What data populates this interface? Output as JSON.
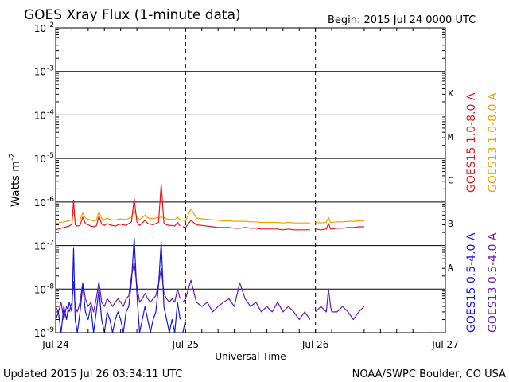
{
  "chart_data": {
    "type": "line",
    "title": "GOES Xray Flux (1-minute data)",
    "begin_label": "Begin:  2015 Jul 24 0000 UTC",
    "ylabel": "Watts m",
    "ylabel_sup": "-2",
    "xlabel": "Universal Time",
    "y_scale": "log",
    "ylim": [
      1e-09,
      0.01
    ],
    "y_ticks": [
      {
        "value": 0.01,
        "base": "10",
        "exp": "-2"
      },
      {
        "value": 0.001,
        "base": "10",
        "exp": "-3"
      },
      {
        "value": 0.0001,
        "base": "10",
        "exp": "-4"
      },
      {
        "value": 1e-05,
        "base": "10",
        "exp": "-5"
      },
      {
        "value": 1e-06,
        "base": "10",
        "exp": "-6"
      },
      {
        "value": 1e-07,
        "base": "10",
        "exp": "-7"
      },
      {
        "value": 1e-08,
        "base": "10",
        "exp": "-8"
      },
      {
        "value": 1e-09,
        "base": "10",
        "exp": "-9"
      }
    ],
    "xlim_hours": [
      0,
      72
    ],
    "x_ticks": [
      {
        "hour": 0,
        "label": "Jul 24"
      },
      {
        "hour": 24,
        "label": "Jul 25"
      },
      {
        "hour": 48,
        "label": "Jul 26"
      },
      {
        "hour": 72,
        "label": "Jul 27"
      }
    ],
    "flare_classes": [
      {
        "label": "X",
        "value": 0.000316
      },
      {
        "label": "M",
        "value": 3.16e-05
      },
      {
        "label": "C",
        "value": 3.16e-06
      },
      {
        "label": "B",
        "value": 3.16e-07
      },
      {
        "label": "A",
        "value": 3.16e-08
      }
    ],
    "series": [
      {
        "name": "GOES15 1.0-8.0 A",
        "color": "#e8181b",
        "x_hours": [
          0,
          0.5,
          1,
          1.5,
          2,
          2.5,
          3,
          3.3,
          3.6,
          4,
          4.5,
          5,
          5.5,
          6,
          6.5,
          7,
          7.5,
          8,
          8.5,
          9,
          9.5,
          10,
          10.5,
          11,
          11.5,
          12,
          12.5,
          13,
          13.5,
          14,
          14.5,
          15,
          15.5,
          16,
          16.5,
          17,
          17.5,
          18,
          18.5,
          19,
          19.5,
          20,
          20.5,
          21,
          21.5,
          22,
          22.5,
          23,
          23.5,
          24,
          25,
          26,
          27,
          28,
          29,
          30,
          31,
          32,
          33,
          34,
          35,
          36,
          37,
          38,
          39,
          40,
          41,
          42,
          43,
          44,
          45,
          46,
          47,
          48,
          49,
          50,
          50.4,
          50.8,
          51,
          52,
          53,
          54,
          55,
          56,
          57
        ],
        "values": [
          2.3e-07,
          2.4e-07,
          2.5e-07,
          2.6e-07,
          2.7e-07,
          2.8e-07,
          3.1e-07,
          1.1e-06,
          3e-07,
          2.8e-07,
          2.9e-07,
          4.5e-07,
          3.2e-07,
          3e-07,
          2.8e-07,
          2.7e-07,
          2.8e-07,
          4.8e-07,
          3.1e-07,
          2.9e-07,
          3.2e-07,
          3e-07,
          2.9e-07,
          2.8e-07,
          3e-07,
          3.1e-07,
          3e-07,
          2.9e-07,
          3.2e-07,
          3.5e-07,
          1.2e-06,
          3.5e-07,
          2.9e-07,
          3.3e-07,
          3.8e-07,
          3.2e-07,
          3.1e-07,
          3e-07,
          3.2e-07,
          3.4e-07,
          2.6e-06,
          3.3e-07,
          3e-07,
          2.9e-07,
          2.9e-07,
          2.8e-07,
          3.4e-07,
          2.8e-07,
          2.7e-07,
          2.6e-07,
          3.8e-07,
          3e-07,
          2.9e-07,
          2.8e-07,
          2.7e-07,
          2.6e-07,
          2.6e-07,
          2.6e-07,
          2.5e-07,
          2.5e-07,
          2.6e-07,
          2.5e-07,
          2.5e-07,
          2.4e-07,
          2.4e-07,
          2.4e-07,
          2.4e-07,
          2.3e-07,
          2.4e-07,
          2.3e-07,
          2.3e-07,
          2.3e-07,
          2.3e-07,
          2.4e-07,
          2.3e-07,
          2.4e-07,
          3.2e-07,
          2.4e-07,
          2.4e-07,
          2.5e-07,
          2.5e-07,
          2.6e-07,
          2.6e-07,
          2.7e-07,
          2.7e-07
        ]
      },
      {
        "name": "GOES13 1.0-8.0 A",
        "color": "#f0a000",
        "x_hours": [
          0,
          0.5,
          1,
          1.5,
          2,
          2.5,
          3,
          3.3,
          3.6,
          4,
          4.5,
          5,
          5.5,
          6,
          6.5,
          7,
          7.5,
          8,
          8.5,
          9,
          9.5,
          10,
          10.5,
          11,
          11.5,
          12,
          12.5,
          13,
          13.5,
          14,
          14.5,
          15,
          15.5,
          16,
          16.5,
          17,
          17.5,
          18,
          18.5,
          19,
          19.5,
          20,
          20.5,
          21,
          21.5,
          22,
          22.5,
          23,
          23.5,
          24,
          25,
          26,
          27,
          28,
          29,
          30,
          31,
          32,
          33,
          34,
          35,
          36,
          37,
          38,
          39,
          40,
          41,
          42,
          43,
          44,
          45,
          46,
          47,
          48,
          49,
          50,
          50.4,
          50.8,
          51,
          52,
          53,
          54,
          55,
          56,
          57
        ],
        "values": [
          3.2e-07,
          3.3e-07,
          3.4e-07,
          3.5e-07,
          3.6e-07,
          3.7e-07,
          3.9e-07,
          6e-07,
          4e-07,
          3.8e-07,
          3.9e-07,
          5.6e-07,
          4.3e-07,
          4e-07,
          3.8e-07,
          3.7e-07,
          3.8e-07,
          6e-07,
          4.2e-07,
          3.9e-07,
          4.3e-07,
          4e-07,
          3.9e-07,
          3.8e-07,
          4e-07,
          4.1e-07,
          4e-07,
          3.9e-07,
          4.2e-07,
          4.5e-07,
          6.5e-07,
          4.6e-07,
          3.9e-07,
          4.4e-07,
          5e-07,
          4.3e-07,
          4.2e-07,
          4.1e-07,
          4.3e-07,
          4.4e-07,
          4.5e-07,
          4.4e-07,
          4.1e-07,
          4e-07,
          4e-07,
          3.9e-07,
          4.5e-07,
          3.9e-07,
          3.8e-07,
          3.7e-07,
          7e-07,
          4.3e-07,
          4.1e-07,
          4e-07,
          3.9e-07,
          3.8e-07,
          3.7e-07,
          3.7e-07,
          3.6e-07,
          3.6e-07,
          3.6e-07,
          3.5e-07,
          3.5e-07,
          3.4e-07,
          3.4e-07,
          3.4e-07,
          3.4e-07,
          3.3e-07,
          3.4e-07,
          3.3e-07,
          3.3e-07,
          3.3e-07,
          3.3e-07,
          3.4e-07,
          3.3e-07,
          3.4e-07,
          4.4e-07,
          3.4e-07,
          3.4e-07,
          3.5e-07,
          3.5e-07,
          3.6e-07,
          3.6e-07,
          3.7e-07,
          3.7e-07
        ]
      },
      {
        "name": "GOES15 0.5-4.0 A",
        "color": "#1515e0",
        "x_hours": [
          0,
          0.5,
          1,
          1.5,
          2,
          2.5,
          3,
          3.3,
          3.6,
          4,
          4.5,
          5,
          5.5,
          6,
          6.5,
          7,
          7.5,
          8,
          8.5,
          9,
          9.5,
          10,
          10.5,
          11,
          11.5,
          12,
          12.5,
          13,
          13.5,
          14,
          14.5,
          15,
          15.5,
          16,
          16.5,
          17,
          17.5,
          18,
          18.5,
          19,
          19.5,
          20,
          20.5,
          21,
          21.5,
          22,
          22.5,
          23,
          23.5,
          24
        ],
        "values": [
          2e-09,
          3e-09,
          1e-09,
          4e-09,
          2e-09,
          5e-09,
          3e-09,
          9e-08,
          2e-09,
          1e-09,
          3e-09,
          1.2e-08,
          3e-09,
          2e-09,
          4e-09,
          1e-09,
          3e-09,
          1e-08,
          2e-09,
          1e-09,
          3e-09,
          2e-09,
          1e-09,
          2e-09,
          3e-09,
          2e-09,
          1e-09,
          3e-09,
          4e-09,
          1.5e-08,
          1.5e-07,
          8e-09,
          1e-09,
          2e-09,
          4e-09,
          2e-09,
          1e-09,
          2e-09,
          3e-09,
          1.2e-08,
          1.2e-07,
          4e-09,
          2e-09,
          1e-09,
          2e-09,
          1e-09,
          5e-09,
          2e-09,
          1e-09,
          2e-09
        ]
      },
      {
        "name": "GOES13 0.5-4.0 A",
        "color": "#6a1ab0",
        "x_hours": [
          0,
          0.5,
          1,
          1.5,
          2,
          2.5,
          3,
          3.3,
          3.6,
          4,
          4.5,
          5,
          5.5,
          6,
          6.5,
          7,
          7.5,
          8,
          8.5,
          9,
          9.5,
          10,
          10.5,
          11,
          11.5,
          12,
          12.5,
          13,
          13.5,
          14,
          14.5,
          15,
          15.5,
          16,
          16.5,
          17,
          17.5,
          18,
          18.5,
          19,
          19.5,
          20,
          20.5,
          21,
          21.5,
          22,
          22.5,
          23,
          23.5,
          24,
          25,
          26,
          27,
          28,
          29,
          30,
          31,
          32,
          33,
          34,
          35,
          36,
          37,
          38,
          39,
          40,
          41,
          42,
          43,
          44,
          45,
          46,
          47,
          48,
          49,
          50,
          50.4,
          50.8,
          51,
          52,
          53,
          54,
          55,
          56,
          57
        ],
        "values": [
          4e-09,
          3e-09,
          5e-09,
          2e-09,
          4e-09,
          3e-09,
          5e-09,
          1.5e-08,
          4e-09,
          3e-09,
          5e-09,
          1.4e-08,
          6e-09,
          4e-09,
          5e-09,
          3e-09,
          6e-09,
          1.5e-08,
          5e-09,
          4e-09,
          6e-09,
          5e-09,
          4e-09,
          5e-09,
          6e-09,
          5e-09,
          4e-09,
          6e-09,
          7e-09,
          2e-08,
          4e-08,
          1.2e-08,
          5e-09,
          6e-09,
          8e-09,
          6e-09,
          5e-09,
          6e-09,
          7e-09,
          1.3e-08,
          3e-08,
          8e-09,
          6e-09,
          5e-09,
          6e-09,
          5e-09,
          1e-08,
          6e-09,
          5e-09,
          6e-09,
          1.6e-08,
          5e-09,
          4e-09,
          5e-09,
          3e-09,
          4e-09,
          5e-09,
          6e-09,
          4e-09,
          1.4e-08,
          6e-09,
          4e-09,
          5e-09,
          3e-09,
          4e-09,
          3e-09,
          5e-09,
          3e-09,
          4e-09,
          3e-09,
          2e-09,
          3e-09,
          2e-09,
          3e-09,
          4e-09,
          3e-09,
          1e-08,
          4e-09,
          3e-09,
          3e-09,
          4e-09,
          3e-09,
          2e-09,
          3e-09,
          4e-09
        ]
      }
    ],
    "data_gaps_hours": [
      23.2,
      47.4
    ],
    "footer_left": "Updated 2015 Jul 26 03:34:11 UTC",
    "footer_right": "NOAA/SWPC Boulder, CO USA"
  }
}
